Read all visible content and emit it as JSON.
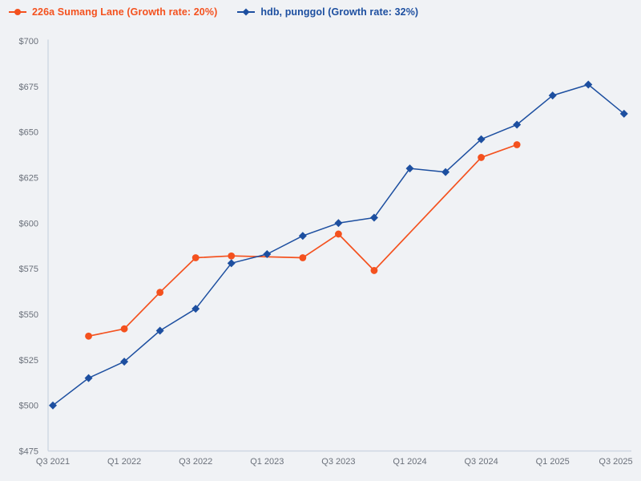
{
  "page": {
    "background": "#f0f2f5"
  },
  "legend": {
    "items": [
      {
        "label": "226a Sumang Lane (Growth rate: 20%)",
        "marker": "circle",
        "color": "#f4511e"
      },
      {
        "label": "hdb, punggol (Growth rate: 32%)",
        "marker": "diamond",
        "color": "#1d4fa0"
      }
    ]
  },
  "chart_data": {
    "type": "line",
    "title": "",
    "xlabel": "",
    "ylabel": "",
    "grid": false,
    "legend_position": "top-left",
    "ylim": [
      475,
      700
    ],
    "y_tick_labels": [
      "$700",
      "$675",
      "$650",
      "$625",
      "$600",
      "$575",
      "$550",
      "$525",
      "$500",
      "$475"
    ],
    "x_categories": [
      "Q3 2021",
      "Q4 2021",
      "Q1 2022",
      "Q2 2022",
      "Q3 2022",
      "Q4 2022",
      "Q1 2023",
      "Q2 2023",
      "Q3 2023",
      "Q4 2023",
      "Q1 2024",
      "Q2 2024",
      "Q3 2024",
      "Q4 2024",
      "Q1 2025",
      "Q2 2025",
      "Q3 2025"
    ],
    "x_tick_labels": [
      "Q3 2021",
      "Q1 2022",
      "Q3 2022",
      "Q1 2023",
      "Q3 2023",
      "Q1 2024",
      "Q3 2024",
      "Q1 2025",
      "Q3 2025"
    ],
    "axis": {
      "line_color": "#ccd5e2",
      "tick_text_color": "#6a707a"
    },
    "series": [
      {
        "name": "226a Sumang Lane (Growth rate: 20%)",
        "color": "#f4511e",
        "marker": "circle",
        "points": [
          [
            "Q4 2021",
            538
          ],
          [
            "Q1 2022",
            542
          ],
          [
            "Q2 2022",
            562
          ],
          [
            "Q3 2022",
            581
          ],
          [
            "Q4 2022",
            582
          ],
          [
            "Q2 2023",
            581
          ],
          [
            "Q3 2023",
            594
          ],
          [
            "Q4 2023",
            574
          ],
          [
            "Q3 2024",
            636
          ],
          [
            "Q4 2024",
            643
          ]
        ]
      },
      {
        "name": "hdb, punggol (Growth rate: 32%)",
        "color": "#1d4fa0",
        "marker": "diamond",
        "points": [
          [
            "Q3 2021",
            500
          ],
          [
            "Q4 2021",
            515
          ],
          [
            "Q1 2022",
            524
          ],
          [
            "Q2 2022",
            541
          ],
          [
            "Q3 2022",
            553
          ],
          [
            "Q4 2022",
            578
          ],
          [
            "Q1 2023",
            583
          ],
          [
            "Q2 2023",
            593
          ],
          [
            "Q3 2023",
            600
          ],
          [
            "Q4 2023",
            603
          ],
          [
            "Q1 2024",
            630
          ],
          [
            "Q2 2024",
            628
          ],
          [
            "Q3 2024",
            646
          ],
          [
            "Q4 2024",
            654
          ],
          [
            "Q1 2025",
            670
          ],
          [
            "Q2 2025",
            676
          ],
          [
            "Q3 2025",
            660
          ]
        ]
      }
    ]
  }
}
